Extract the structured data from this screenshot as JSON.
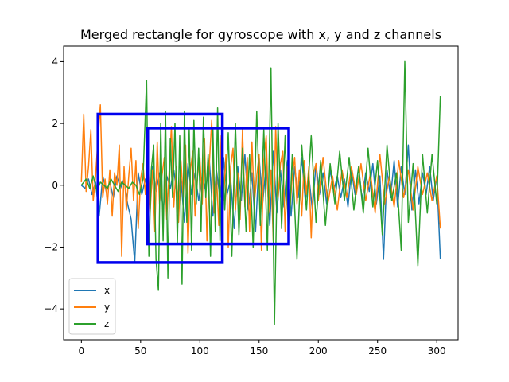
{
  "chart_data": {
    "type": "line",
    "title": "Merged rectangle for gyroscope with x, y and z channels",
    "xlabel": "",
    "ylabel": "",
    "xlim": [
      -15,
      318
    ],
    "ylim": [
      -5.0,
      4.5
    ],
    "x_ticks": [
      0,
      50,
      100,
      150,
      200,
      250,
      300
    ],
    "y_ticks": [
      -4,
      -2,
      0,
      2,
      4
    ],
    "x_tick_labels": [
      "0",
      "50",
      "100",
      "150",
      "200",
      "250",
      "300"
    ],
    "y_tick_labels": [
      "−4",
      "−2",
      "0",
      "2",
      "4"
    ],
    "grid": false,
    "legend_position": "lower-left",
    "series": [
      {
        "name": "x",
        "color": "#1f77b4",
        "x": [
          0,
          3,
          6,
          9,
          12,
          15,
          18,
          21,
          24,
          27,
          30,
          33,
          36,
          39,
          42,
          45,
          48,
          51,
          54,
          57,
          60,
          63,
          66,
          69,
          72,
          75,
          78,
          81,
          84,
          87,
          90,
          93,
          96,
          99,
          102,
          105,
          108,
          111,
          114,
          117,
          120,
          123,
          126,
          129,
          132,
          135,
          138,
          141,
          144,
          147,
          150,
          153,
          156,
          159,
          162,
          165,
          168,
          171,
          174,
          177,
          180,
          183,
          186,
          189,
          192,
          195,
          198,
          201,
          204,
          207,
          210,
          213,
          216,
          219,
          222,
          225,
          228,
          231,
          234,
          237,
          240,
          243,
          246,
          249,
          252,
          255,
          258,
          261,
          264,
          267,
          270,
          273,
          276,
          279,
          282,
          285,
          288,
          291,
          294,
          297,
          300,
          303
        ],
        "values": [
          0.0,
          -0.1,
          0.2,
          -0.3,
          0.1,
          -1.0,
          0.3,
          -0.2,
          0.1,
          -0.4,
          0.3,
          -0.1,
          0.2,
          -0.6,
          -1.1,
          -2.5,
          0.4,
          -0.3,
          0.2,
          -0.5,
          0.6,
          -0.2,
          0.4,
          -0.8,
          0.3,
          -0.1,
          0.5,
          -0.4,
          0.2,
          -1.2,
          0.7,
          -0.3,
          0.4,
          -0.5,
          0.3,
          -0.2,
          0.8,
          -1.0,
          0.5,
          -0.4,
          0.9,
          -0.3,
          0.2,
          -1.4,
          0.6,
          -0.5,
          1.0,
          -0.8,
          0.4,
          -1.5,
          0.9,
          -0.6,
          0.7,
          -1.3,
          1.1,
          -0.9,
          0.5,
          -0.7,
          0.8,
          -1.0,
          0.6,
          -0.4,
          0.9,
          -0.5,
          0.3,
          -0.8,
          0.7,
          -0.3,
          0.4,
          -0.6,
          0.5,
          -0.2,
          0.3,
          -0.4,
          0.2,
          -0.7,
          0.5,
          -0.3,
          0.6,
          -0.5,
          0.4,
          -0.2,
          0.7,
          -0.6,
          0.3,
          -2.4,
          0.5,
          -0.4,
          0.8,
          -0.7,
          0.6,
          -0.3,
          1.3,
          -0.8,
          0.5,
          -0.6,
          0.4,
          -0.3,
          0.6,
          -0.5,
          0.3,
          -2.4
        ]
      },
      {
        "name": "y",
        "color": "#ff7f0e",
        "x": [
          0,
          2,
          4,
          6,
          8,
          10,
          12,
          14,
          16,
          18,
          20,
          22,
          24,
          26,
          28,
          30,
          32,
          34,
          36,
          38,
          40,
          42,
          44,
          46,
          48,
          50,
          52,
          54,
          56,
          58,
          60,
          62,
          64,
          66,
          68,
          70,
          72,
          74,
          76,
          78,
          80,
          82,
          84,
          86,
          88,
          90,
          92,
          94,
          96,
          98,
          100,
          102,
          104,
          106,
          108,
          110,
          112,
          114,
          116,
          118,
          120,
          122,
          124,
          126,
          128,
          130,
          132,
          134,
          136,
          138,
          140,
          142,
          144,
          146,
          148,
          150,
          152,
          154,
          156,
          158,
          160,
          162,
          164,
          166,
          168,
          170,
          172,
          174,
          176,
          178,
          180,
          182,
          184,
          186,
          188,
          190,
          192,
          194,
          196,
          198,
          200,
          204,
          208,
          212,
          216,
          220,
          224,
          228,
          232,
          236,
          240,
          244,
          248,
          252,
          256,
          260,
          264,
          268,
          272,
          276,
          280,
          284,
          288,
          292,
          296,
          300,
          303
        ],
        "values": [
          0.1,
          2.3,
          -0.2,
          0.6,
          1.8,
          -0.5,
          0.3,
          1.5,
          2.6,
          -0.4,
          0.2,
          -0.6,
          0.5,
          -1.0,
          0.4,
          0.0,
          1.3,
          -2.3,
          0.6,
          -0.8,
          0.3,
          1.2,
          -0.5,
          0.8,
          -1.4,
          0.2,
          0.7,
          -0.3,
          1.0,
          -0.9,
          0.5,
          -1.5,
          1.4,
          -0.6,
          0.3,
          0.9,
          -1.1,
          0.4,
          1.9,
          -0.7,
          0.6,
          -1.2,
          0.8,
          -0.4,
          1.3,
          -2.2,
          0.5,
          1.1,
          -1.0,
          0.3,
          0.9,
          -0.6,
          1.5,
          -1.8,
          0.7,
          2.1,
          -0.9,
          0.4,
          -1.3,
          1.6,
          -0.5,
          1.0,
          -2.0,
          0.6,
          1.2,
          -0.8,
          0.4,
          -1.1,
          1.8,
          -0.7,
          0.9,
          -1.5,
          1.4,
          -0.6,
          0.3,
          1.0,
          -2.1,
          0.8,
          1.6,
          -0.9,
          0.5,
          -1.8,
          1.9,
          -0.4,
          0.7,
          1.1,
          -1.5,
          0.6,
          -0.8,
          0.3,
          0.9,
          -0.6,
          0.5,
          -1.0,
          0.8,
          -0.3,
          0.6,
          -1.7,
          0.4,
          0.7,
          -0.5,
          0.9,
          -0.6,
          0.3,
          -0.8,
          0.5,
          -0.4,
          0.6,
          -0.3,
          0.7,
          -0.5,
          0.4,
          -0.9,
          1.0,
          -0.6,
          0.3,
          -0.7,
          0.8,
          -0.4,
          0.5,
          -0.8,
          0.6,
          -0.3,
          0.4,
          -0.5,
          0.3,
          -1.4
        ]
      },
      {
        "name": "z",
        "color": "#2ca02c",
        "x": [
          0,
          4,
          7,
          10,
          13,
          16,
          19,
          22,
          25,
          28,
          31,
          34,
          37,
          40,
          43,
          46,
          49,
          52,
          55,
          57,
          59,
          61,
          63,
          65,
          67,
          69,
          71,
          73,
          75,
          77,
          79,
          81,
          83,
          85,
          87,
          89,
          91,
          93,
          95,
          97,
          99,
          101,
          103,
          105,
          107,
          109,
          111,
          113,
          115,
          117,
          119,
          121,
          124,
          127,
          130,
          133,
          136,
          139,
          142,
          145,
          148,
          151,
          154,
          157,
          160,
          163,
          166,
          169,
          172,
          175,
          178,
          182,
          186,
          190,
          194,
          198,
          202,
          206,
          210,
          214,
          218,
          222,
          226,
          230,
          234,
          238,
          242,
          246,
          250,
          254,
          258,
          262,
          266,
          270,
          273,
          276,
          280,
          284,
          288,
          292,
          296,
          300,
          303
        ],
        "values": [
          0.0,
          0.2,
          -0.1,
          0.3,
          -0.2,
          0.1,
          0.0,
          -0.1,
          0.2,
          0.0,
          -0.2,
          0.1,
          0.0,
          -0.1,
          0.1,
          0.0,
          -0.3,
          0.2,
          3.4,
          -2.3,
          0.5,
          1.3,
          -2.4,
          -3.4,
          2.0,
          -1.8,
          2.4,
          -3.0,
          1.5,
          -0.4,
          2.0,
          -1.9,
          1.6,
          -3.2,
          2.4,
          -1.2,
          1.8,
          -2.1,
          2.1,
          -0.6,
          1.2,
          -1.5,
          2.2,
          -0.4,
          1.0,
          -2.3,
          1.8,
          -1.5,
          2.5,
          -1.8,
          1.3,
          -0.8,
          1.7,
          -2.3,
          2.0,
          -1.6,
          1.2,
          -1.5,
          1.0,
          -2.0,
          2.4,
          -1.3,
          1.8,
          -2.1,
          3.8,
          -4.5,
          2.0,
          -1.4,
          1.6,
          -1.8,
          1.0,
          -2.4,
          1.3,
          -0.8,
          1.6,
          -1.2,
          0.8,
          -1.3,
          0.7,
          -0.6,
          1.1,
          -0.5,
          0.9,
          -0.8,
          0.6,
          -0.9,
          1.2,
          -0.7,
          0.8,
          -1.6,
          1.3,
          -0.5,
          0.4,
          -2.1,
          4.0,
          -1.2,
          0.7,
          -2.6,
          1.0,
          -0.9,
          1.0,
          -0.6,
          2.9
        ]
      }
    ],
    "rectangles": [
      {
        "x0": 14,
        "x1": 119,
        "y0": -2.5,
        "y1": 2.3,
        "color": "#0000ee"
      },
      {
        "x0": 56,
        "x1": 175,
        "y0": -1.9,
        "y1": 1.85,
        "color": "#0000ee"
      }
    ]
  }
}
